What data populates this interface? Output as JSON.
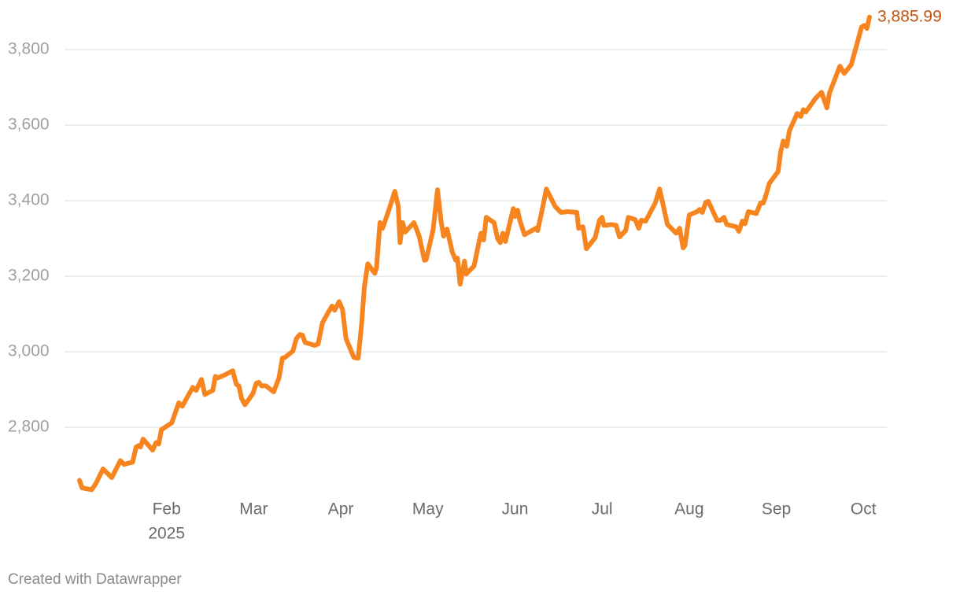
{
  "chart_data": {
    "type": "line",
    "x_year_label": "2025",
    "credit": "Created with Datawrapper",
    "xlim": [
      0,
      9.07
    ],
    "xticks": [
      {
        "value": 1,
        "label": "Feb"
      },
      {
        "value": 2,
        "label": "Mar"
      },
      {
        "value": 3,
        "label": "Apr"
      },
      {
        "value": 4,
        "label": "May"
      },
      {
        "value": 5,
        "label": "Jun"
      },
      {
        "value": 6,
        "label": "Jul"
      },
      {
        "value": 7,
        "label": "Aug"
      },
      {
        "value": 8,
        "label": "Sep"
      },
      {
        "value": 9,
        "label": "Oct"
      }
    ],
    "ylim": [
      2640,
      3900
    ],
    "yticks": [
      {
        "value": 2800,
        "label": "2,800"
      },
      {
        "value": 3000,
        "label": "3,000"
      },
      {
        "value": 3200,
        "label": "3,200"
      },
      {
        "value": 3400,
        "label": "3,400"
      },
      {
        "value": 3600,
        "label": "3,600"
      },
      {
        "value": 3800,
        "label": "3,800"
      }
    ],
    "grid": true,
    "value_label_color": "#c4540c",
    "x": [
      0.0,
      0.03,
      0.14,
      0.19,
      0.27,
      0.37,
      0.47,
      0.51,
      0.61,
      0.65,
      0.68,
      0.7,
      0.73,
      0.84,
      0.88,
      0.91,
      0.94,
      1.06,
      1.14,
      1.18,
      1.3,
      1.34,
      1.4,
      1.44,
      1.53,
      1.56,
      1.59,
      1.67,
      1.76,
      1.8,
      1.83,
      1.86,
      1.9,
      1.99,
      2.03,
      2.06,
      2.09,
      2.14,
      2.23,
      2.29,
      2.33,
      2.36,
      2.45,
      2.49,
      2.53,
      2.56,
      2.59,
      2.7,
      2.74,
      2.79,
      2.86,
      2.9,
      2.93,
      2.98,
      3.02,
      3.06,
      3.15,
      3.2,
      3.24,
      3.27,
      3.31,
      3.39,
      3.41,
      3.45,
      3.48,
      3.56,
      3.62,
      3.66,
      3.68,
      3.71,
      3.74,
      3.84,
      3.9,
      3.96,
      3.98,
      4.06,
      4.09,
      4.11,
      4.15,
      4.18,
      4.22,
      4.28,
      4.32,
      4.34,
      4.37,
      4.42,
      4.44,
      4.53,
      4.59,
      4.61,
      4.64,
      4.67,
      4.76,
      4.8,
      4.83,
      4.86,
      4.89,
      4.98,
      5.0,
      5.03,
      5.06,
      5.11,
      5.24,
      5.26,
      5.32,
      5.36,
      5.46,
      5.51,
      5.53,
      5.6,
      5.71,
      5.73,
      5.78,
      5.82,
      5.92,
      5.97,
      6.0,
      6.02,
      6.05,
      6.1,
      6.16,
      6.2,
      6.27,
      6.3,
      6.38,
      6.42,
      6.45,
      6.5,
      6.61,
      6.66,
      6.7,
      6.75,
      6.85,
      6.89,
      6.93,
      6.95,
      7.0,
      7.09,
      7.12,
      7.15,
      7.19,
      7.22,
      7.32,
      7.36,
      7.4,
      7.43,
      7.54,
      7.57,
      7.61,
      7.64,
      7.68,
      7.77,
      7.82,
      7.85,
      7.88,
      7.92,
      8.02,
      8.05,
      8.08,
      8.12,
      8.15,
      8.24,
      8.28,
      8.31,
      8.34,
      8.45,
      8.52,
      8.58,
      8.61,
      8.73,
      8.78,
      8.86,
      8.98,
      9.01,
      9.04,
      9.07
    ],
    "series": [
      {
        "color": "#f7851f",
        "values": [
          2660,
          2640,
          2635,
          2652,
          2690,
          2667,
          2712,
          2702,
          2708,
          2748,
          2752,
          2748,
          2769,
          2740,
          2760,
          2756,
          2794,
          2812,
          2865,
          2856,
          2906,
          2898,
          2927,
          2887,
          2898,
          2935,
          2931,
          2939,
          2950,
          2914,
          2910,
          2877,
          2860,
          2889,
          2917,
          2919,
          2910,
          2910,
          2894,
          2931,
          2983,
          2985,
          3002,
          3035,
          3046,
          3044,
          3025,
          3017,
          3021,
          3077,
          3106,
          3121,
          3110,
          3133,
          3112,
          3035,
          2985,
          2983,
          3077,
          3171,
          3233,
          3208,
          3223,
          3342,
          3327,
          3381,
          3425,
          3385,
          3289,
          3342,
          3317,
          3342,
          3306,
          3242,
          3244,
          3323,
          3385,
          3429,
          3348,
          3306,
          3325,
          3264,
          3242,
          3248,
          3179,
          3240,
          3206,
          3227,
          3294,
          3314,
          3296,
          3356,
          3342,
          3300,
          3289,
          3314,
          3292,
          3379,
          3358,
          3375,
          3344,
          3310,
          3327,
          3321,
          3385,
          3431,
          3385,
          3373,
          3369,
          3371,
          3369,
          3327,
          3331,
          3273,
          3302,
          3348,
          3356,
          3335,
          3335,
          3337,
          3335,
          3304,
          3321,
          3356,
          3350,
          3327,
          3348,
          3346,
          3394,
          3431,
          3389,
          3337,
          3314,
          3327,
          3275,
          3281,
          3362,
          3371,
          3377,
          3369,
          3396,
          3398,
          3348,
          3348,
          3356,
          3337,
          3331,
          3319,
          3346,
          3339,
          3371,
          3366,
          3394,
          3394,
          3414,
          3446,
          3477,
          3529,
          3558,
          3544,
          3585,
          3631,
          3623,
          3641,
          3635,
          3671,
          3687,
          3646,
          3685,
          3756,
          3737,
          3760,
          3860,
          3864,
          3856,
          3885.99
        ],
        "value_labels": [
          null,
          null,
          null,
          null,
          null,
          null,
          null,
          null,
          null,
          null,
          null,
          null,
          null,
          null,
          null,
          null,
          null,
          null,
          null,
          null,
          null,
          null,
          null,
          null,
          null,
          null,
          null,
          null,
          null,
          null,
          null,
          null,
          null,
          null,
          null,
          null,
          null,
          null,
          null,
          null,
          null,
          null,
          null,
          null,
          null,
          null,
          null,
          null,
          null,
          null,
          null,
          null,
          null,
          null,
          null,
          null,
          null,
          null,
          null,
          null,
          null,
          null,
          null,
          null,
          null,
          null,
          null,
          null,
          null,
          null,
          null,
          null,
          null,
          null,
          null,
          null,
          null,
          null,
          null,
          null,
          null,
          null,
          null,
          null,
          null,
          null,
          null,
          null,
          null,
          null,
          null,
          null,
          null,
          null,
          null,
          null,
          null,
          null,
          null,
          null,
          null,
          null,
          null,
          null,
          null,
          null,
          null,
          null,
          null,
          null,
          null,
          null,
          null,
          null,
          null,
          null,
          null,
          null,
          null,
          null,
          null,
          null,
          null,
          null,
          null,
          null,
          null,
          null,
          null,
          null,
          null,
          null,
          null,
          null,
          null,
          null,
          null,
          null,
          null,
          null,
          null,
          null,
          null,
          null,
          null,
          null,
          null,
          null,
          null,
          null,
          null,
          null,
          null,
          null,
          null,
          null,
          null,
          null,
          null,
          null,
          null,
          null,
          null,
          null,
          null,
          null,
          null,
          null,
          null,
          null,
          null,
          null,
          null,
          null,
          null,
          "3,885.99"
        ]
      }
    ]
  }
}
